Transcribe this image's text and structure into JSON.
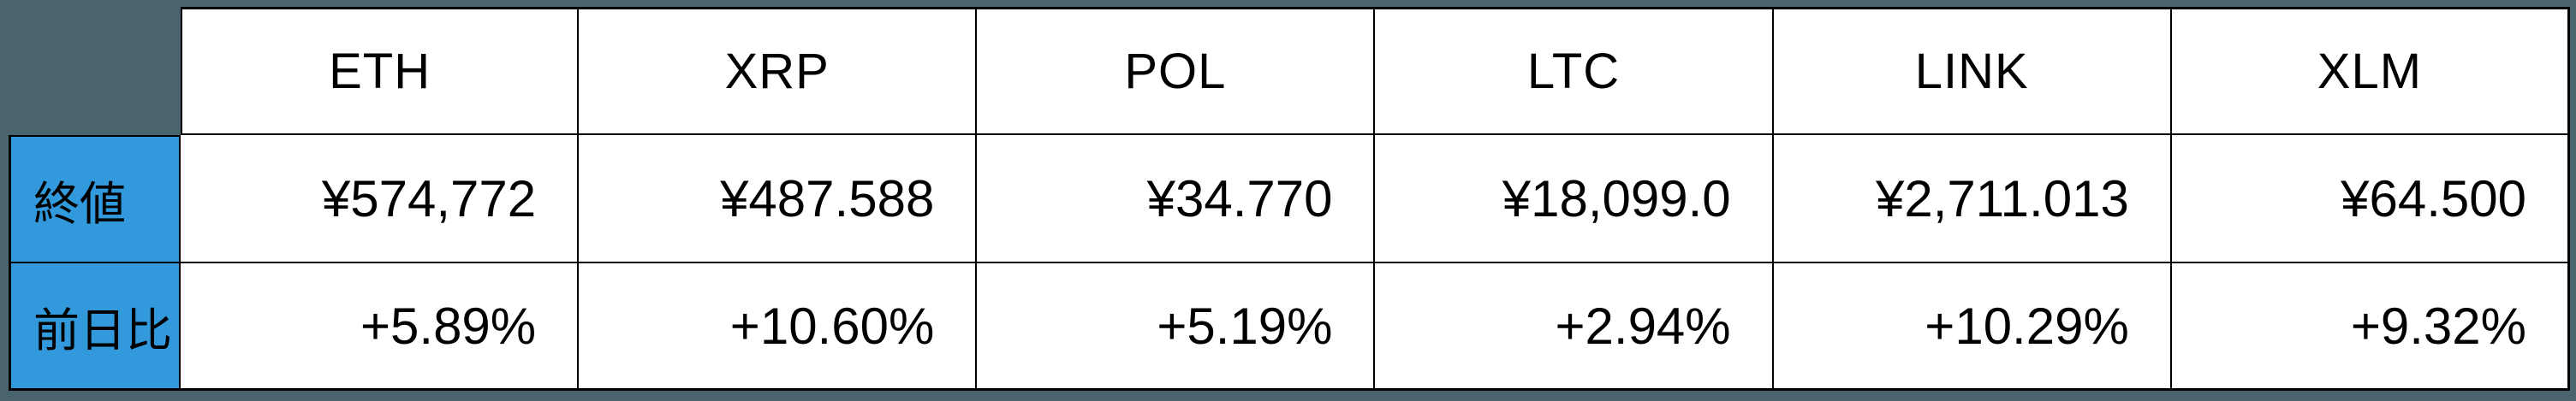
{
  "colors": {
    "page_background": "#4A646E",
    "accent_blue": "#3199DC",
    "cell_background": "#FFFFFF",
    "border": "#000000",
    "text": "#000000"
  },
  "chart_data": {
    "type": "table",
    "title": "",
    "columns": [
      "ETH",
      "XRP",
      "POL",
      "LTC",
      "LINK",
      "XLM"
    ],
    "rows": [
      {
        "label": "終値",
        "values": [
          "¥574,772",
          "¥487.588",
          "¥34.770",
          "¥18,099.0",
          "¥2,711.013",
          "¥64.500"
        ]
      },
      {
        "label": "前日比",
        "values": [
          "+5.89%",
          "+10.60%",
          "+5.19%",
          "+2.94%",
          "+10.29%",
          "+9.32%"
        ]
      }
    ],
    "layout_hints": {
      "corner_cell": "hidden",
      "row_label_column_highlight": "#3199DC",
      "value_alignment": "right",
      "header_alignment": "center",
      "grid": "on"
    }
  }
}
